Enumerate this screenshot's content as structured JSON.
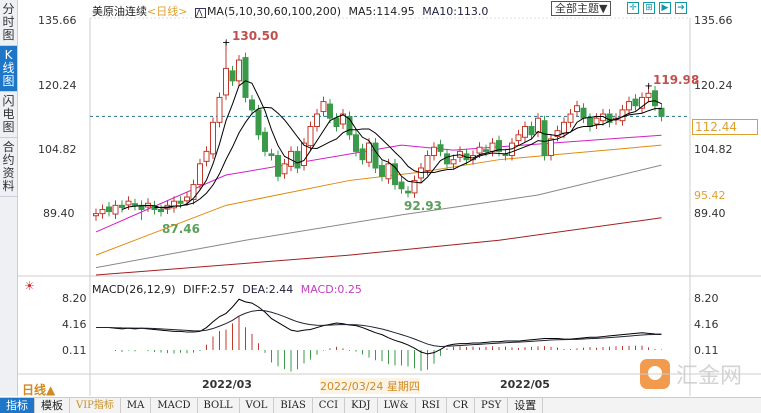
{
  "sidebar": {
    "tabs": [
      "分时图",
      "K线图",
      "闪电图",
      "合约资料"
    ],
    "active": 1
  },
  "header": {
    "symbol": "美原油连续",
    "period": "<日线>",
    "ma_params": "MA(5,10,30,60,100,200)",
    "ma5": "MA5:114.95",
    "ma10": "MA10:113.0",
    "theme_button": "全部主题▼"
  },
  "price_axis": {
    "left": [
      "135.66",
      "120.24",
      "104.82",
      "89.40"
    ],
    "right": [
      "135.66",
      "120.24",
      "104.82",
      "89.40"
    ],
    "current_price": "112.44",
    "ref_price": "95.42"
  },
  "annotations": {
    "high": "130.50",
    "low1": "87.46",
    "low2": "92.93",
    "recent_high": "119.98"
  },
  "macd": {
    "label": "MACD(26,12,9)",
    "diff": "DIFF:2.57",
    "dea": "DEA:2.44",
    "macd": "MACD:0.25",
    "axis": [
      "8.20",
      "4.16",
      "0.11"
    ]
  },
  "date_axis": {
    "period_button": "日线▲",
    "labels": [
      "2022/03",
      "2022/03/24 星期四",
      "2022/05"
    ]
  },
  "toolbar": [
    "指标",
    "模板",
    "VIP指标",
    "MA",
    "MACD",
    "BOLL",
    "VOL",
    "BIAS",
    "CCI",
    "KDJ",
    "LW&",
    "RSI",
    "CR",
    "PSY",
    "设置"
  ],
  "watermark": "汇金网",
  "colors": {
    "up": "#c0392b",
    "down": "#3a9a4a",
    "ma5": "#000000",
    "ma10": "#000000",
    "ma30": "#d020c8",
    "ma60": "#e08a10",
    "ma100": "#888888",
    "ma200": "#a02020",
    "accent": "#1d76c8"
  },
  "chart_data": {
    "type": "candlestick",
    "closes": [
      89,
      90,
      89.5,
      91,
      90.5,
      92,
      91,
      90,
      91.5,
      90,
      89.5,
      91,
      92,
      91.5,
      93,
      96,
      101,
      104,
      111,
      117,
      124,
      121,
      126,
      117,
      114,
      108,
      104,
      103,
      98,
      101,
      104,
      100,
      106,
      110,
      113,
      116,
      112,
      110,
      113,
      108,
      104,
      102,
      106,
      100,
      98,
      101,
      96,
      95,
      94,
      97,
      100,
      103,
      105,
      104,
      101,
      102,
      104,
      102,
      103,
      105,
      104,
      106,
      104,
      103,
      106,
      108,
      110,
      108,
      112,
      103,
      107,
      109,
      111,
      113,
      115,
      112,
      110,
      112,
      113,
      111,
      112,
      114,
      116,
      115,
      117,
      118,
      115,
      112.44
    ],
    "marked_highs": {
      "20": 130.5,
      "85": 119.98
    },
    "marked_lows": {
      "7": 87.46,
      "48": 92.93
    },
    "ma_long": {
      "ma30": [
        [
          0,
          84.6
        ],
        [
          20,
          98.3
        ],
        [
          47,
          105.5
        ],
        [
          55,
          104.3
        ],
        [
          87,
          107.9
        ]
      ],
      "ma60": [
        [
          0,
          79
        ],
        [
          20,
          91
        ],
        [
          39,
          97
        ],
        [
          50,
          99
        ],
        [
          62,
          102
        ],
        [
          87,
          105.5
        ]
      ],
      "ma100": [
        [
          0,
          76
        ],
        [
          23,
          82.6
        ],
        [
          47,
          88.7
        ],
        [
          68,
          93.5
        ],
        [
          87,
          100.7
        ]
      ],
      "ma200": [
        [
          0,
          74.2
        ],
        [
          39,
          79
        ],
        [
          62,
          82.6
        ],
        [
          87,
          88
        ]
      ]
    },
    "ylim": [
      70,
      138
    ],
    "diff": [
      3.6,
      3.6,
      3.6,
      3.5,
      3.4,
      3.5,
      3.4,
      3.5,
      3.4,
      3.3,
      3.2,
      3.1,
      3.0,
      3.0,
      2.9,
      2.9,
      3.0,
      3.6,
      4.5,
      5.3,
      5.8,
      6.8,
      8.0,
      7.6,
      7.4,
      6.8,
      6.0,
      5.0,
      4.4,
      3.8,
      3.2,
      3.0,
      3.2,
      3.3,
      3.6,
      3.9,
      4.1,
      4.3,
      4.2,
      4.0,
      3.9,
      3.6,
      3.2,
      2.8,
      2.5,
      2.0,
      1.6,
      1.3,
      0.9,
      0.4,
      -0.2,
      -0.5,
      -0.3,
      0.2,
      0.8,
      1.0,
      1.1,
      1.1,
      1.2,
      1.2,
      1.3,
      1.4,
      1.4,
      1.5,
      1.5,
      1.5,
      1.6,
      1.7,
      1.8,
      1.9,
      1.9,
      1.9,
      1.8,
      1.8,
      1.9,
      2.0,
      2.1,
      2.1,
      2.2,
      2.3,
      2.4,
      2.5,
      2.6,
      2.7,
      2.8,
      2.7,
      2.6,
      2.57
    ]
  }
}
